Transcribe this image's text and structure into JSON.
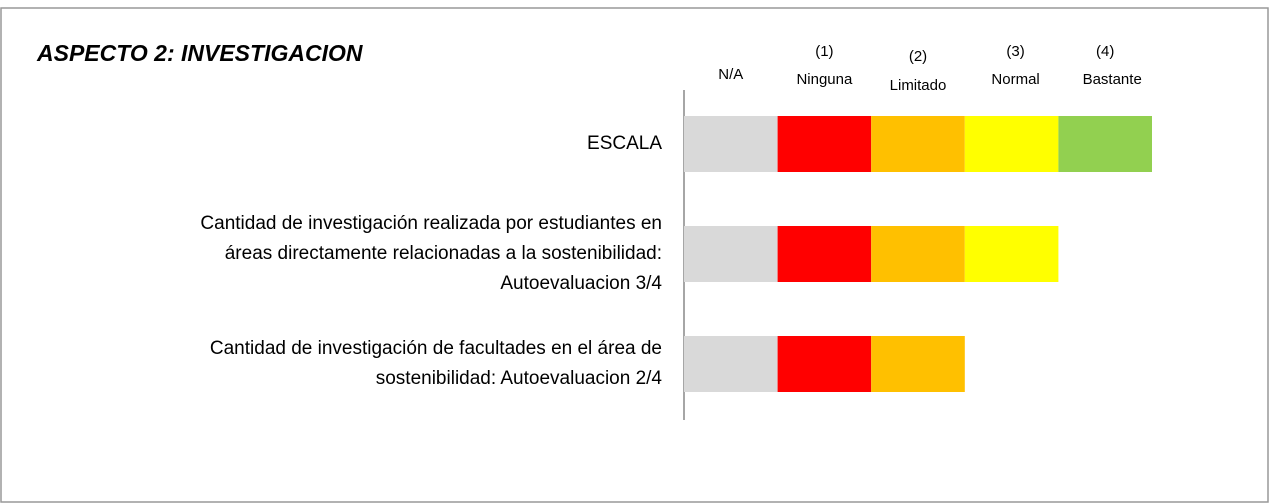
{
  "chart_data": {
    "type": "stacked-bar-horizontal",
    "title": "ASPECTO 2: INVESTIGACION",
    "categories": [
      [
        "ESCALA"
      ],
      [
        "Cantidad de investigación realizada por estudiantes  en",
        "áreas directamente relacionadas a la sostenibilidad:",
        "Autoevaluacion 3/4"
      ],
      [
        "Cantidad de investigación de facultades en el área de",
        "sostenibilidad: Autoevaluacion 2/4"
      ]
    ],
    "series": [
      {
        "name": "N/A",
        "color": "#d9d9d9",
        "values": [
          1,
          1,
          1
        ]
      },
      {
        "code": "(1)",
        "name": "Ninguna",
        "color": "#ff0000",
        "values": [
          1,
          1,
          1
        ]
      },
      {
        "code": "(2)",
        "name": "Limitado",
        "color": "#ffc000",
        "values": [
          1,
          1,
          1
        ]
      },
      {
        "code": "(3)",
        "name": "Normal",
        "color": "#ffff00",
        "values": [
          1,
          1,
          0
        ]
      },
      {
        "code": "(4)",
        "name": "Bastante",
        "color": "#92d050",
        "values": [
          1,
          0,
          0
        ]
      }
    ],
    "xlim": [
      0,
      5
    ]
  }
}
